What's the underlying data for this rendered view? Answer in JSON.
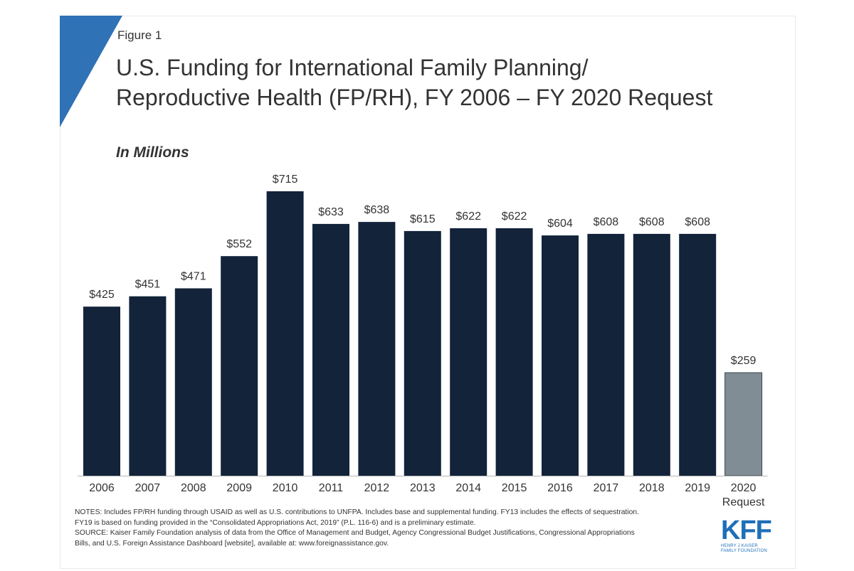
{
  "figure_label": "Figure 1",
  "title_lines": [
    "U.S. Funding for International Family Planning/",
    "Reproductive  Health (FP/RH), FY 2006 – FY 2020 Request"
  ],
  "subtitle": "In Millions",
  "colors": {
    "bar": "#12233a",
    "bar_request": "#818d95",
    "accent": "#2f72b6",
    "text": "#333333"
  },
  "chart_data": {
    "type": "bar",
    "title": "U.S. Funding for International Family Planning/ Reproductive Health (FP/RH), FY 2006 – FY 2020 Request",
    "subtitle": "In Millions",
    "xlabel": "",
    "ylabel": "",
    "categories": [
      "2006",
      "2007",
      "2008",
      "2009",
      "2010",
      "2011",
      "2012",
      "2013",
      "2014",
      "2015",
      "2016",
      "2017",
      "2018",
      "2019",
      "2020 Request"
    ],
    "values": [
      425,
      451,
      471,
      552,
      715,
      633,
      638,
      615,
      622,
      622,
      604,
      608,
      608,
      608,
      259
    ],
    "data_labels": [
      "$425",
      "$451",
      "$471",
      "$552",
      "$715",
      "$633",
      "$638",
      "$615",
      "$622",
      "$622",
      "$604",
      "$608",
      "$608",
      "$608",
      "$259"
    ],
    "highlight_index": 14,
    "ylim": [
      0,
      715
    ],
    "grid": false,
    "legend": "none"
  },
  "notes": {
    "line1": "NOTES:  Includes FP/RH  funding through USAID as well as U.S. contributions to UNFPA.  Includes base and supplemental funding. FY13 includes the effects of sequestration.",
    "line2": "FY19 is based on funding provided in the “Consolidated Appropriations Act, 2019” (P.L. 116-6) and is a preliminary estimate.",
    "line3": "SOURCE:  Kaiser Family Foundation analysis of data from the Office of Management and Budget, Agency Congressional Budget Justifications, Congressional Appropriations",
    "line4": "Bills, and U.S. Foreign Assistance Dashboard [website], available at: www.foreignassistance.gov."
  },
  "logo": {
    "wordmark": "KFF",
    "subtext": "HENRY J KAISER\nFAMILY FOUNDATION"
  }
}
